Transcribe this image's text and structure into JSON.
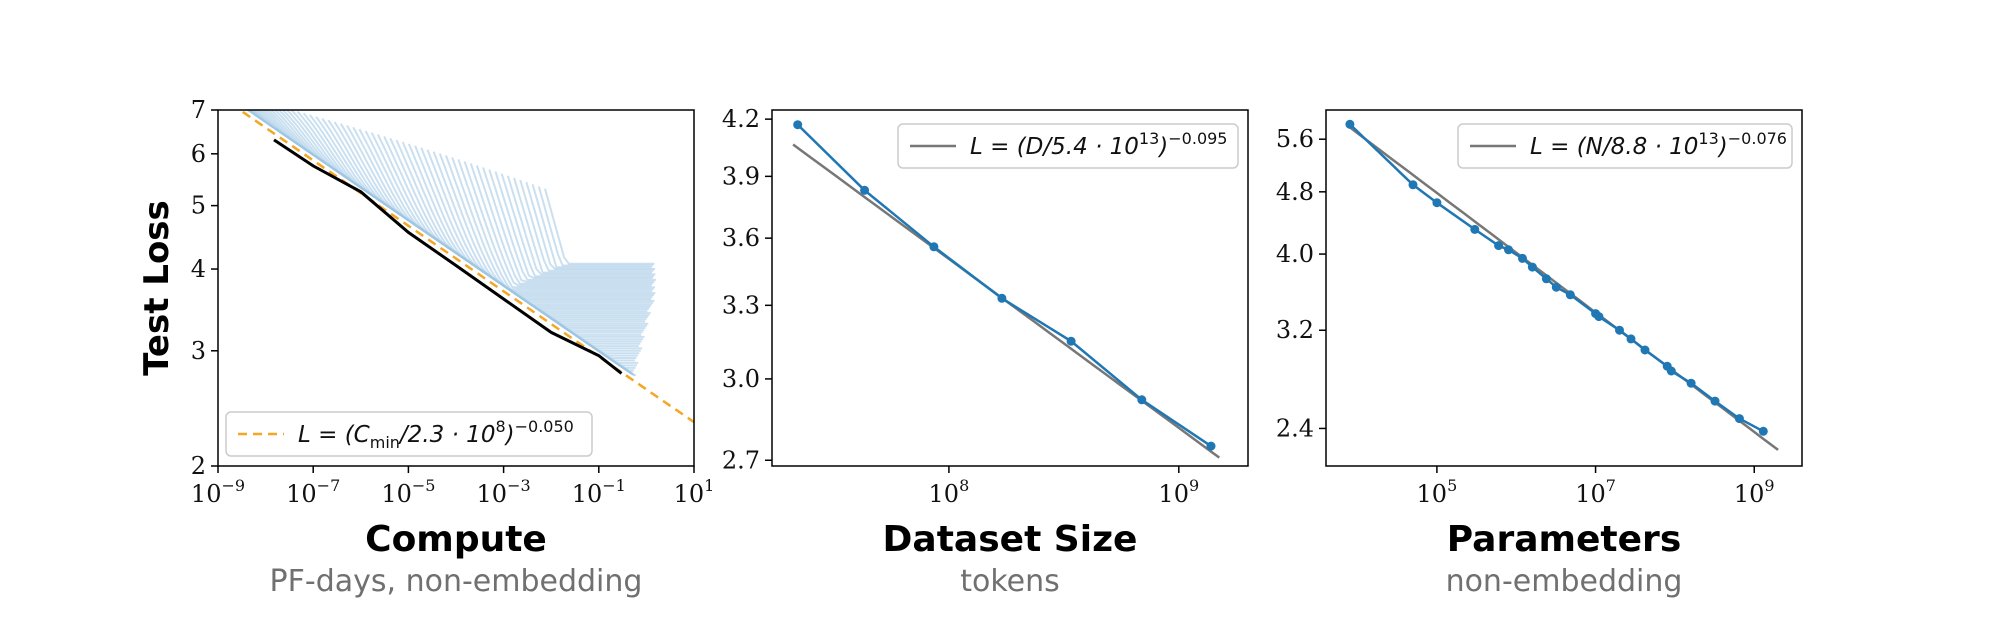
{
  "chart_data": [
    {
      "type": "line",
      "title": "Compute",
      "subtitle": "PF-days, non-embedding",
      "ylabel": "Test Loss",
      "xscale": "log",
      "yscale": "log",
      "xlim": [
        1e-09,
        10
      ],
      "ylim": [
        2,
        7
      ],
      "xticks": [
        {
          "base": "10",
          "exp": "−9",
          "value": 1e-09
        },
        {
          "base": "10",
          "exp": "−7",
          "value": 1e-07
        },
        {
          "base": "10",
          "exp": "−5",
          "value": 1e-05
        },
        {
          "base": "10",
          "exp": "−3",
          "value": 0.001
        },
        {
          "base": "10",
          "exp": "−1",
          "value": 0.1
        },
        {
          "base": "10",
          "exp": "1",
          "value": 10
        }
      ],
      "yticks": [
        {
          "label": "2",
          "value": 2
        },
        {
          "label": "3",
          "value": 3
        },
        {
          "label": "4",
          "value": 4
        },
        {
          "label": "5",
          "value": 5
        },
        {
          "label": "6",
          "value": 6
        },
        {
          "label": "7",
          "value": 7
        }
      ],
      "legend": {
        "position": "bottom-left",
        "text_main": "L = (C",
        "text_sub": "min",
        "text_mid": "/2.3 · 10",
        "text_exp1": "8",
        "text_end": ")",
        "text_exp2": "−0.050"
      },
      "fit": {
        "name": "L = (Cmin/2.3·10^8)^−0.050",
        "color": "#f5a623",
        "style": "dashed",
        "coef": 230000000.0,
        "exponent": -0.05
      },
      "frontier": {
        "color": "#000000",
        "x": [
          1.5e-08,
          1e-07,
          1e-06,
          1e-05,
          0.0001,
          0.001,
          0.01,
          0.1,
          0.3
        ],
        "y": [
          6.3,
          5.75,
          5.25,
          4.55,
          4.05,
          3.6,
          3.2,
          2.95,
          2.77
        ]
      },
      "runs_color": "#9ec6e3",
      "runs_count": 60
    },
    {
      "type": "line",
      "title": "Dataset Size",
      "subtitle": "tokens",
      "xscale": "log",
      "yscale": "log",
      "xlim": [
        17000000.0,
        2000000000.0
      ],
      "ylim": [
        2.68,
        4.25
      ],
      "xticks": [
        {
          "base": "10",
          "exp": "8",
          "value": 100000000.0
        },
        {
          "base": "10",
          "exp": "9",
          "value": 1000000000.0
        }
      ],
      "yticks": [
        {
          "label": "2.7",
          "value": 2.7
        },
        {
          "label": "3.0",
          "value": 3.0
        },
        {
          "label": "3.3",
          "value": 3.3
        },
        {
          "label": "3.6",
          "value": 3.6
        },
        {
          "label": "3.9",
          "value": 3.9
        },
        {
          "label": "4.2",
          "value": 4.2
        }
      ],
      "legend": {
        "position": "top-right",
        "text_main": "L = (D/5.4 · 10",
        "text_exp1": "13",
        "text_end": ")",
        "text_exp2": "−0.095"
      },
      "fit": {
        "color": "#777777",
        "coef": 54000000000000.0,
        "exponent": -0.095,
        "xrange": [
          21000000.0,
          1500000000.0
        ]
      },
      "series": [
        {
          "color": "#1f77b4",
          "x": [
            22000000.0,
            43000000.0,
            86000000.0,
            170000000.0,
            340000000.0,
            690000000.0,
            1380000000.0
          ],
          "y": [
            4.17,
            3.83,
            3.56,
            3.33,
            3.15,
            2.92,
            2.75
          ]
        }
      ]
    },
    {
      "type": "line",
      "title": "Parameters",
      "subtitle": "non-embedding",
      "xscale": "log",
      "yscale": "log",
      "xlim": [
        4000.0,
        4000000000.0
      ],
      "ylim": [
        2.15,
        6.1
      ],
      "xticks": [
        {
          "base": "10",
          "exp": "5",
          "value": 100000.0
        },
        {
          "base": "10",
          "exp": "7",
          "value": 10000000.0
        },
        {
          "base": "10",
          "exp": "9",
          "value": 1000000000.0
        }
      ],
      "yticks": [
        {
          "label": "2.4",
          "value": 2.4
        },
        {
          "label": "3.2",
          "value": 3.2
        },
        {
          "label": "4.0",
          "value": 4.0
        },
        {
          "label": "4.8",
          "value": 4.8
        },
        {
          "label": "5.6",
          "value": 5.6
        }
      ],
      "legend": {
        "position": "top-right",
        "text_main": "L = (N/8.8 · 10",
        "text_exp1": "13",
        "text_end": ")",
        "text_exp2": "−0.076"
      },
      "fit": {
        "color": "#777777",
        "coef": 88000000000000.0,
        "exponent": -0.076,
        "xrange": [
          8000.0,
          2000000000.0
        ]
      },
      "series": [
        {
          "color": "#1f77b4",
          "x": [
            8000.0,
            50000.0,
            100000.0,
            300000.0,
            600000.0,
            800000.0,
            1200000.0,
            1600000.0,
            2400000.0,
            3200000.0,
            4800000.0,
            10000000.0,
            11000000.0,
            20000000.0,
            28000000.0,
            42000000.0,
            80000000.0,
            90000000.0,
            160000000.0,
            320000000.0,
            650000000.0,
            1300000000.0
          ],
          "y": [
            5.85,
            4.9,
            4.65,
            4.3,
            4.1,
            4.05,
            3.95,
            3.85,
            3.72,
            3.63,
            3.55,
            3.36,
            3.33,
            3.2,
            3.12,
            3.02,
            2.88,
            2.84,
            2.74,
            2.6,
            2.47,
            2.38
          ]
        }
      ]
    }
  ]
}
